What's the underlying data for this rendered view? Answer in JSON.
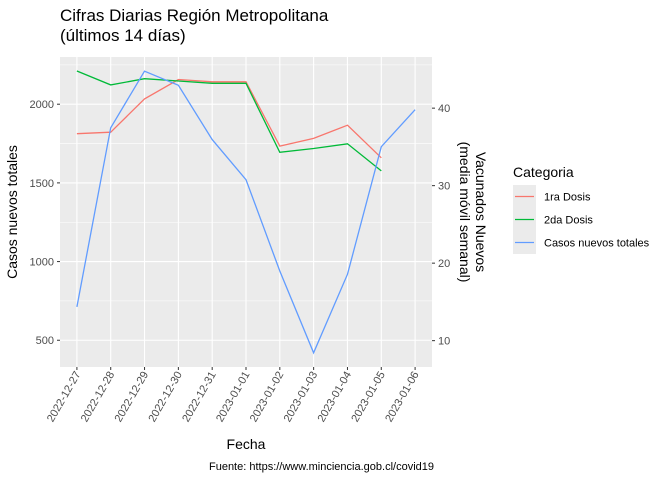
{
  "chart_data": {
    "type": "line",
    "title": "Cifras Diarias Región Metropolitana\n(últimos 14 días)",
    "xlabel": "Fecha",
    "ylabel": "Casos nuevos totales",
    "y2label": "Vacunados Nuevos\n(media móvil semanal)",
    "caption": "Fuente: https://www.minciencia.gob.cl/covid19",
    "x": [
      "2022-12-27",
      "2022-12-28",
      "2022-12-29",
      "2022-12-30",
      "2022-12-31",
      "2023-01-01",
      "2023-01-02",
      "2023-01-03",
      "2023-01-04",
      "2023-01-05",
      "2023-01-06"
    ],
    "ylim": [
      330,
      2300
    ],
    "yticks": [
      500,
      1000,
      1500,
      2000
    ],
    "y2lim": [
      6.6,
      46.6
    ],
    "y2ticks": [
      10,
      20,
      30,
      40
    ],
    "legend": {
      "title": "Categoria",
      "position": "right"
    },
    "grid": true,
    "series": [
      {
        "name": "1ra Dosis",
        "axis": "right",
        "color": "#F8766D",
        "values": [
          36.7,
          36.9,
          41.2,
          43.7,
          43.4,
          43.4,
          35.1,
          36.1,
          37.8,
          33.6,
          null
        ]
      },
      {
        "name": "2da Dosis",
        "axis": "right",
        "color": "#00BA38",
        "values": [
          44.8,
          43.0,
          43.8,
          43.5,
          43.2,
          43.2,
          34.3,
          34.8,
          35.4,
          31.9,
          null
        ]
      },
      {
        "name": "Casos nuevos totales",
        "axis": "left",
        "color": "#619CFF",
        "values": [
          712,
          1850,
          2210,
          2120,
          1775,
          1520,
          940,
          420,
          920,
          1730,
          1965
        ]
      }
    ]
  }
}
